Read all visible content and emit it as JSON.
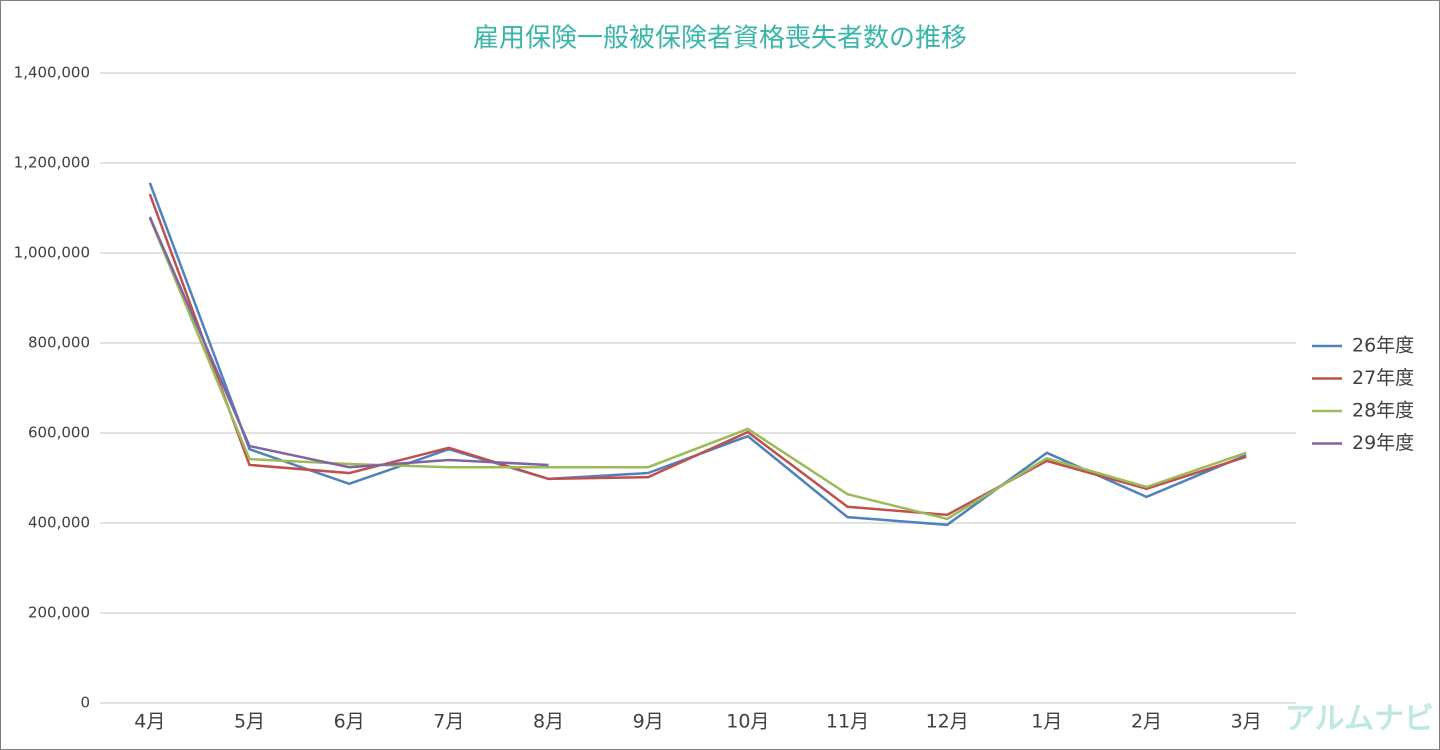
{
  "chart_data": {
    "type": "line",
    "title": "雇用保険一般被保険者資格喪失者数の推移",
    "categories": [
      "4月",
      "5月",
      "6月",
      "7月",
      "8月",
      "9月",
      "10月",
      "11月",
      "12月",
      "1月",
      "2月",
      "3月"
    ],
    "series": [
      {
        "name": "26年度",
        "color": "#4f81bd",
        "values": [
          1156000,
          564000,
          487000,
          564000,
          498000,
          511000,
          593000,
          413000,
          396000,
          556000,
          458000,
          551000
        ]
      },
      {
        "name": "27年度",
        "color": "#c0504d",
        "values": [
          1131000,
          529000,
          511000,
          567000,
          498000,
          502000,
          602000,
          436000,
          418000,
          538000,
          476000,
          547000
        ]
      },
      {
        "name": "28年度",
        "color": "#9bbb59",
        "values": [
          1078000,
          542000,
          531000,
          524000,
          524000,
          524000,
          609000,
          464000,
          409000,
          544000,
          480000,
          556000
        ]
      },
      {
        "name": "29年度",
        "color": "#8064a2",
        "values": [
          1080000,
          571000,
          524000,
          540000,
          529000,
          null,
          null,
          null,
          null,
          null,
          null,
          null
        ]
      }
    ],
    "ylim": [
      0,
      1400000
    ],
    "yticks": [
      0,
      {
        "value": 200000,
        "label": "200,000"
      },
      {
        "value": 400000,
        "label": "400,000"
      },
      {
        "value": 600000,
        "label": "600,000"
      },
      {
        "value": 800000,
        "label": "800,000"
      },
      {
        "value": 1000000,
        "label": "1,000,000"
      },
      {
        "value": 1200000,
        "label": "1,200,000"
      },
      {
        "value": 1400000,
        "label": "1,400,000"
      }
    ],
    "grid": true,
    "legend": "right",
    "watermark": "アルムナビ"
  }
}
